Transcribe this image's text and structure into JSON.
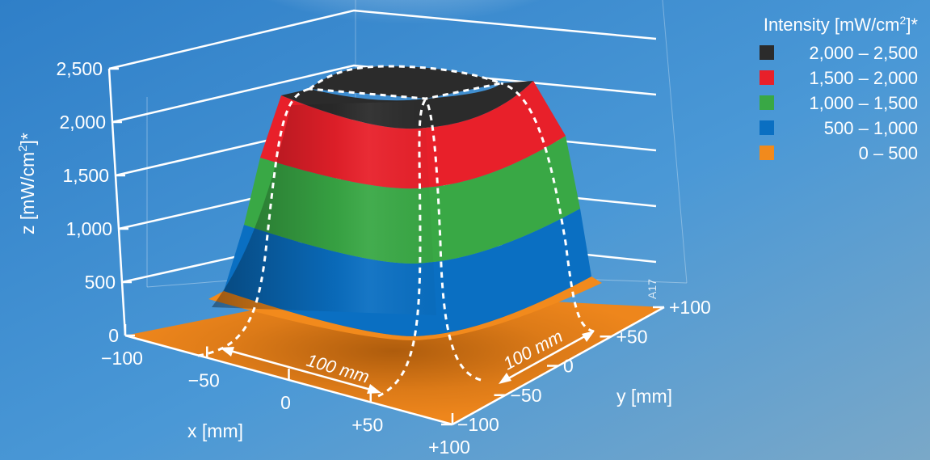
{
  "chart_data": {
    "type": "surface",
    "zlabel_main": "z [mW/cm",
    "zlabel_sup": "2",
    "zlabel_tail": "]*",
    "xlabel": "x [mm]",
    "ylabel": "y [mm]",
    "z_ticks": [
      "0",
      "500",
      "1,000",
      "1,500",
      "2,000",
      "2,500"
    ],
    "z_tick_values": [
      0,
      500,
      1000,
      1500,
      2000,
      2500
    ],
    "x_ticks": [
      "−100",
      "−50",
      "0",
      "+50",
      "+100"
    ],
    "y_ticks": [
      "+100",
      "+50",
      "0",
      "−50",
      "−100"
    ],
    "zlim": [
      0,
      2500
    ],
    "xlim": [
      -100,
      100
    ],
    "ylim": [
      -100,
      100
    ],
    "dimension_x": "100 mm",
    "dimension_y": "100 mm",
    "code": "A17",
    "legend": {
      "title_main": "Intensity [mW/cm",
      "title_sup": "2",
      "title_tail": "]*",
      "placement": "top-right",
      "items": [
        {
          "label": "2,000 – 2,500",
          "color": "#2b2b2b",
          "from": 2000,
          "to": 2500
        },
        {
          "label": "1,500 – 2,000",
          "color": "#e8202a",
          "from": 1500,
          "to": 2000
        },
        {
          "label": "1,000 – 1,500",
          "color": "#39a845",
          "from": 1000,
          "to": 1500
        },
        {
          "label": "500 – 1,000",
          "color": "#0a6fc2",
          "from": 500,
          "to": 1000
        },
        {
          "label": "0 –    500",
          "color": "#f28a1c",
          "from": 0,
          "to": 500
        }
      ]
    }
  }
}
